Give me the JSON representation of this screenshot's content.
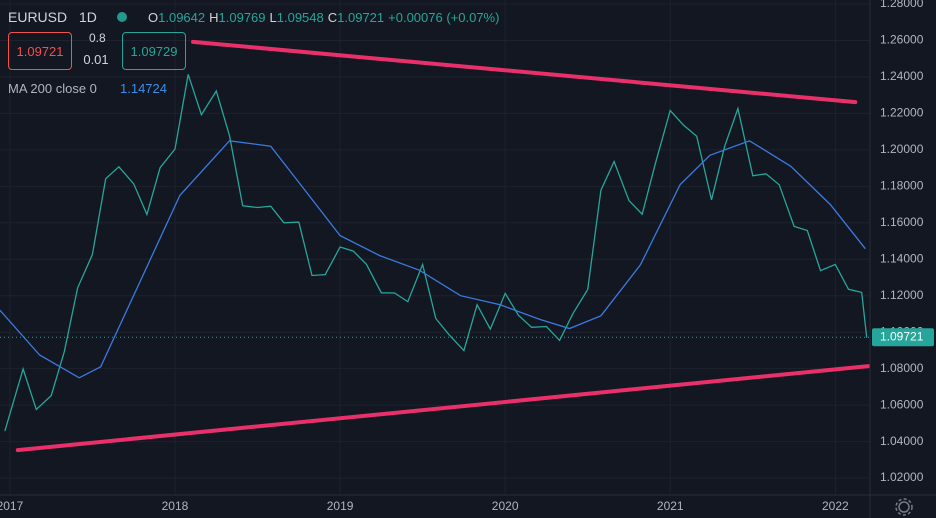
{
  "chart_data": {
    "type": "line",
    "header": {
      "symbol": "EURUSD",
      "interval": "1D",
      "ohlc": [
        {
          "label": "O",
          "value": "1.09642"
        },
        {
          "label": "H",
          "value": "1.09769"
        },
        {
          "label": "L",
          "value": "1.09548"
        },
        {
          "label": "C",
          "value": "1.09721"
        }
      ],
      "change": "+0.00076 (+0.07%)",
      "sell": "1.09721",
      "spread_top": "0.8",
      "spread_bottom": "0.01",
      "buy": "1.09729",
      "indicator": "MA 200 close 0",
      "indicator_value": "1.14724"
    },
    "last_price": {
      "value": 1.09721,
      "label": "1.09721"
    },
    "xlim": [
      2016.94,
      2022.21
    ],
    "xticks": [
      2017,
      2018,
      2019,
      2020,
      2021,
      2022
    ],
    "ylim": [
      1.0107,
      1.2822
    ],
    "yticks": [
      {
        "value": 1.02,
        "label": "1.02000"
      },
      {
        "value": 1.04,
        "label": "1.04000"
      },
      {
        "value": 1.06,
        "label": "1.06000"
      },
      {
        "value": 1.08,
        "label": "1.08000"
      },
      {
        "value": 1.1,
        "label": "1.10000"
      },
      {
        "value": 1.12,
        "label": "1.12000"
      },
      {
        "value": 1.14,
        "label": "1.14000"
      },
      {
        "value": 1.16,
        "label": "1.16000"
      },
      {
        "value": 1.18,
        "label": "1.18000"
      },
      {
        "value": 1.2,
        "label": "1.20000"
      },
      {
        "value": 1.22,
        "label": "1.22000"
      },
      {
        "value": 1.24,
        "label": "1.24000"
      },
      {
        "value": 1.26,
        "label": "1.26000"
      },
      {
        "value": 1.28,
        "label": "1.28000"
      }
    ],
    "grid": true,
    "series": [
      {
        "name": "EURUSD",
        "color": "#26a69a",
        "x": [
          2016.97,
          2017.08,
          2017.16,
          2017.25,
          2017.33,
          2017.41,
          2017.5,
          2017.58,
          2017.66,
          2017.75,
          2017.83,
          2017.91,
          2018.0,
          2018.08,
          2018.16,
          2018.25,
          2018.33,
          2018.41,
          2018.5,
          2018.58,
          2018.66,
          2018.75,
          2018.83,
          2018.91,
          2019.0,
          2019.08,
          2019.16,
          2019.25,
          2019.33,
          2019.41,
          2019.5,
          2019.58,
          2019.66,
          2019.75,
          2019.83,
          2019.91,
          2020.0,
          2020.08,
          2020.16,
          2020.25,
          2020.33,
          2020.41,
          2020.5,
          2020.58,
          2020.66,
          2020.75,
          2020.83,
          2020.91,
          2021.0,
          2021.08,
          2021.16,
          2021.25,
          2021.33,
          2021.41,
          2021.5,
          2021.58,
          2021.66,
          2021.75,
          2021.83,
          2021.91,
          2022.0,
          2022.08,
          2022.16,
          2022.19
        ],
        "values": [
          1.046,
          1.0798,
          1.0576,
          1.0652,
          1.0895,
          1.1243,
          1.1426,
          1.1842,
          1.1907,
          1.1814,
          1.1646,
          1.1902,
          1.2005,
          1.2414,
          1.2193,
          1.2323,
          1.2078,
          1.1693,
          1.1684,
          1.1691,
          1.16,
          1.1604,
          1.1311,
          1.1316,
          1.1467,
          1.1445,
          1.1372,
          1.1216,
          1.1215,
          1.1167,
          1.1371,
          1.1075,
          1.0986,
          1.0899,
          1.1151,
          1.1017,
          1.1213,
          1.1093,
          1.1027,
          1.1031,
          1.0955,
          1.1101,
          1.1234,
          1.1778,
          1.1936,
          1.1721,
          1.1647,
          1.1926,
          1.2216,
          1.2136,
          1.2075,
          1.1726,
          1.202,
          1.2227,
          1.1858,
          1.1869,
          1.1809,
          1.158,
          1.1558,
          1.1338,
          1.1372,
          1.1235,
          1.1218,
          1.09721
        ]
      },
      {
        "name": "MA 200",
        "color": "#3a7be0",
        "x": [
          2016.94,
          2017.18,
          2017.42,
          2017.55,
          2017.79,
          2018.03,
          2018.33,
          2018.58,
          2018.76,
          2019.0,
          2019.24,
          2019.48,
          2019.73,
          2019.97,
          2020.21,
          2020.39,
          2020.58,
          2020.82,
          2021.06,
          2021.24,
          2021.48,
          2021.73,
          2021.97,
          2022.18
        ],
        "values": [
          1.112,
          1.0875,
          1.075,
          1.081,
          1.128,
          1.175,
          1.205,
          1.202,
          1.181,
          1.153,
          1.142,
          1.134,
          1.12,
          1.115,
          1.107,
          1.102,
          1.109,
          1.137,
          1.181,
          1.197,
          1.205,
          1.191,
          1.17,
          1.146
        ]
      },
      {
        "name": "Resistance",
        "color": "#e9306a",
        "x": [
          2018.109,
          2022.121
        ],
        "values": [
          1.2592,
          1.2262
        ]
      },
      {
        "name": "Support",
        "color": "#e9306a",
        "x": [
          2017.048,
          2022.2
        ],
        "values": [
          1.0353,
          1.0814
        ]
      }
    ]
  }
}
